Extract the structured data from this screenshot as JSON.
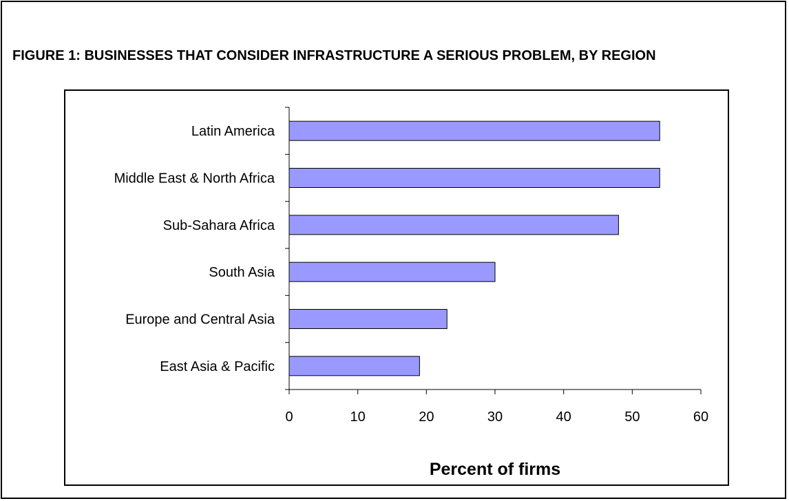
{
  "figure": {
    "title": "FIGURE 1: BUSINESSES THAT CONSIDER INFRASTRUCTURE A SERIOUS PROBLEM, BY REGION"
  },
  "colors": {
    "bar_fill": "#9999FF",
    "bar_stroke": "#000000",
    "frame": "#000000"
  },
  "chart_data": {
    "type": "bar",
    "orientation": "horizontal",
    "categories": [
      "Latin America",
      "Middle East & North Africa",
      "Sub-Sahara Africa",
      "South Asia",
      "Europe and Central Asia",
      "East Asia & Pacific"
    ],
    "values": [
      54,
      54,
      48,
      30,
      23,
      19
    ],
    "xlabel": "Percent of firms",
    "ylabel": "",
    "xlim": [
      0,
      60
    ],
    "xticks": [
      0,
      10,
      20,
      30,
      40,
      50,
      60
    ],
    "grid": false,
    "legend": "none"
  }
}
